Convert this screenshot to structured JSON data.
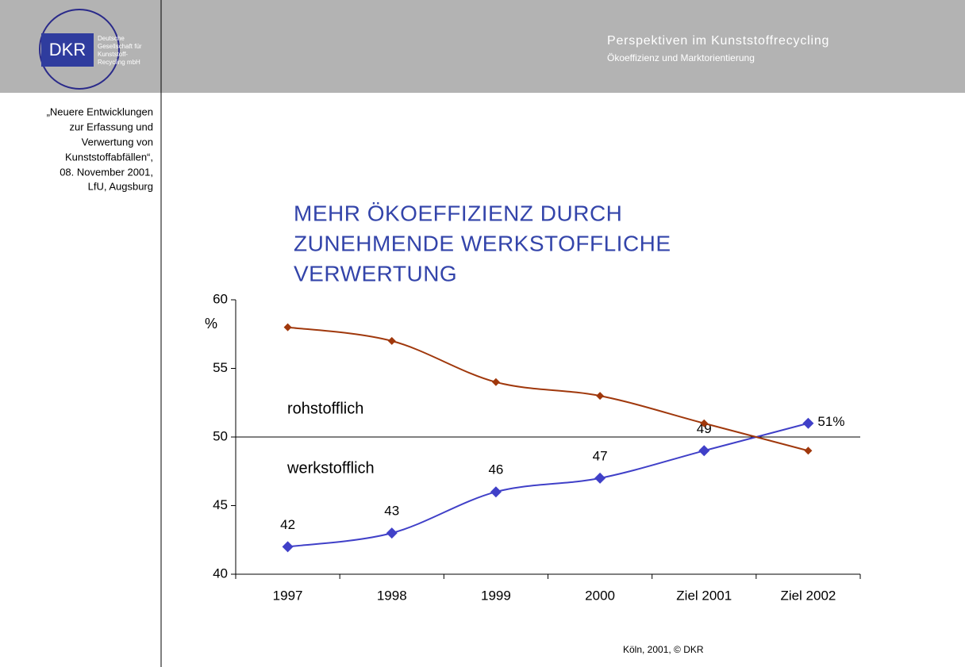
{
  "header": {
    "title": "Perspektiven im Kunststoffrecycling",
    "subtitle": "Ökoeffizienz und Marktorientierung"
  },
  "logo": {
    "abbr": "DKR",
    "name": [
      "Deutsche",
      "Gesellschaft für",
      "Kunststoff-",
      "Recycling mbH"
    ]
  },
  "sidebar": [
    "„Neuere Entwicklungen",
    "zur Erfassung und",
    "Verwertung von",
    "Kunststoffabfällen“,",
    "08. November 2001,",
    "LfU, Augsburg"
  ],
  "footer": "Köln, 2001, © DKR",
  "chart_data": {
    "type": "line",
    "title": [
      "MEHR ÖKOEFFIZIENZ DURCH",
      "ZUNEHMENDE WERKSTOFFLICHE",
      "VERWERTUNG"
    ],
    "y_label": "%",
    "categories": [
      "1997",
      "1998",
      "1999",
      "2000",
      "Ziel 2001",
      "Ziel 2002"
    ],
    "series": [
      {
        "name": "werkstofflich",
        "color": "#4040c8",
        "values": [
          42,
          43,
          46,
          47,
          49,
          51
        ],
        "value_labels": [
          "42",
          "43",
          "46",
          "47",
          "49",
          "51%"
        ]
      },
      {
        "name": "rohstofflich",
        "color": "#a0380c",
        "values": [
          58,
          57,
          54,
          53,
          51,
          49
        ]
      }
    ],
    "ylim": [
      40,
      60
    ],
    "yticks": [
      40,
      45,
      50,
      55,
      60
    ],
    "reference_line": 50,
    "smooth": true
  }
}
